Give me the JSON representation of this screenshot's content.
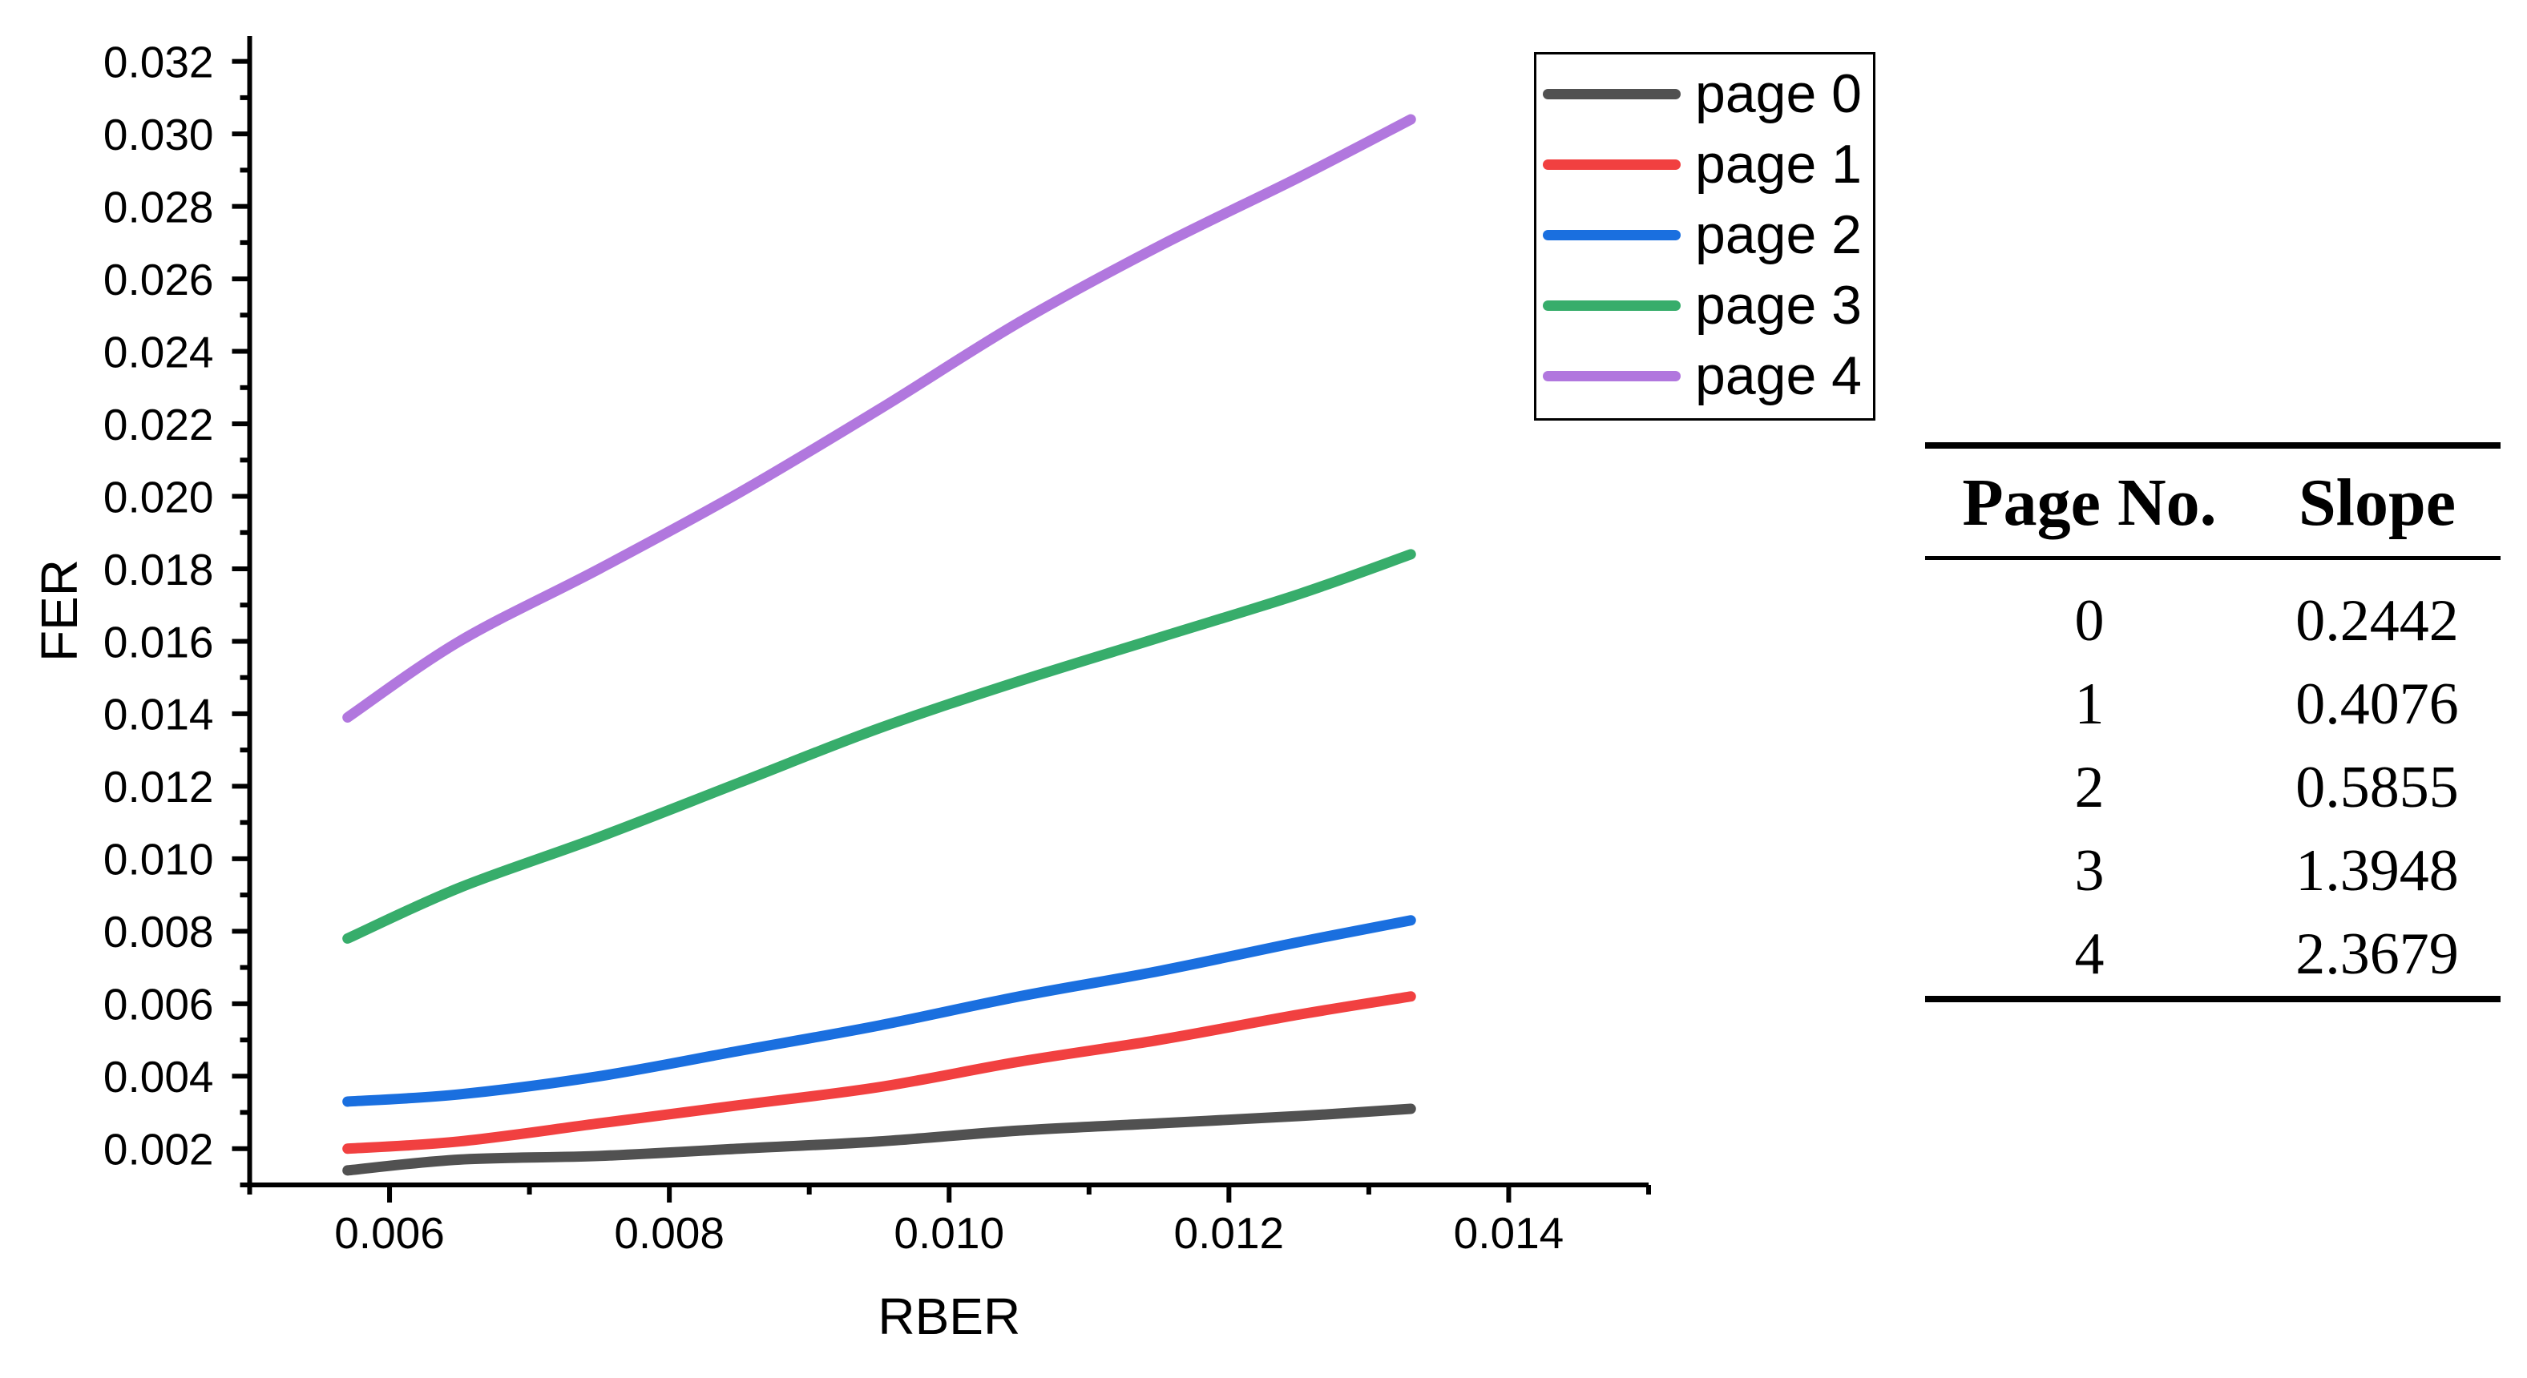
{
  "page": {
    "background": "#ffffff",
    "text_color": "#000000"
  },
  "chart_data": {
    "type": "line",
    "title": "",
    "xlabel": "RBER",
    "ylabel": "FER",
    "grid": false,
    "legend_position": "outside-upper-right",
    "xlim": [
      0.005,
      0.015
    ],
    "ylim": [
      0.001,
      0.0327
    ],
    "x_major_ticks": [
      0.006,
      0.008,
      0.01,
      0.012,
      0.014
    ],
    "x_major_labels": [
      "0.006",
      "0.008",
      "0.010",
      "0.012",
      "0.014"
    ],
    "x_minor_ticks": [
      0.005,
      0.007,
      0.009,
      0.011,
      0.013,
      0.015
    ],
    "y_major_ticks": [
      0.002,
      0.004,
      0.006,
      0.008,
      0.01,
      0.012,
      0.014,
      0.016,
      0.018,
      0.02,
      0.022,
      0.024,
      0.026,
      0.028,
      0.03,
      0.032
    ],
    "y_major_labels": [
      "0.002",
      "0.004",
      "0.006",
      "0.008",
      "0.010",
      "0.012",
      "0.014",
      "0.016",
      "0.018",
      "0.020",
      "0.022",
      "0.024",
      "0.026",
      "0.028",
      "0.030",
      "0.032"
    ],
    "y_minor_ticks": [
      0.001,
      0.003,
      0.005,
      0.007,
      0.009,
      0.011,
      0.013,
      0.015,
      0.017,
      0.019,
      0.021,
      0.023,
      0.025,
      0.027,
      0.029,
      0.031
    ],
    "axis_color": "#000000",
    "x": [
      0.0057,
      0.0065,
      0.0075,
      0.0085,
      0.0095,
      0.0105,
      0.0115,
      0.0125,
      0.0133
    ],
    "series": [
      {
        "name": "page 0",
        "color": "#515151",
        "values": [
          0.0014,
          0.0017,
          0.0018,
          0.002,
          0.0022,
          0.0025,
          0.0027,
          0.0029,
          0.0031
        ]
      },
      {
        "name": "page 1",
        "color": "#F14040",
        "values": [
          0.002,
          0.0022,
          0.0027,
          0.0032,
          0.0037,
          0.0044,
          0.005,
          0.0057,
          0.0062
        ]
      },
      {
        "name": "page 2",
        "color": "#1A6FDF",
        "values": [
          0.0033,
          0.0035,
          0.004,
          0.0047,
          0.0054,
          0.0062,
          0.0069,
          0.0077,
          0.0083
        ]
      },
      {
        "name": "page 3",
        "color": "#37AD6B",
        "values": [
          0.0078,
          0.0092,
          0.0106,
          0.0121,
          0.0136,
          0.0149,
          0.0161,
          0.0173,
          0.0184
        ]
      },
      {
        "name": "page 4",
        "color": "#B177DE",
        "values": [
          0.0139,
          0.016,
          0.018,
          0.0201,
          0.0224,
          0.0248,
          0.0269,
          0.0288,
          0.0304
        ]
      }
    ]
  },
  "legend": {
    "items": [
      {
        "label": "page 0",
        "color": "#515151"
      },
      {
        "label": "page 1",
        "color": "#F14040"
      },
      {
        "label": "page 2",
        "color": "#1A6FDF"
      },
      {
        "label": "page 3",
        "color": "#37AD6B"
      },
      {
        "label": "page 4",
        "color": "#B177DE"
      }
    ]
  },
  "slope_table": {
    "headers": [
      "Page No.",
      "Slope"
    ],
    "rows": [
      [
        "0",
        "0.2442"
      ],
      [
        "1",
        "0.4076"
      ],
      [
        "2",
        "0.5855"
      ],
      [
        "3",
        "1.3948"
      ],
      [
        "4",
        "2.3679"
      ]
    ]
  }
}
